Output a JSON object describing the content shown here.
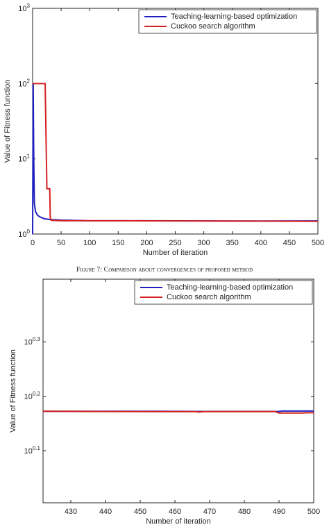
{
  "caption": "Figure 7: Comparison about convergences of proposed method",
  "chart_data": [
    {
      "type": "line",
      "log_y": true,
      "legend": "top-right",
      "xlabel": "Number of iteration",
      "ylabel": "Value of Fitness function",
      "xlim": [
        0,
        500
      ],
      "xticks": [
        0,
        50,
        100,
        150,
        200,
        250,
        300,
        350,
        400,
        450,
        500
      ],
      "ylim": [
        1,
        1000
      ],
      "yticks": [
        {
          "value": 1,
          "label": "10",
          "exponent": "0"
        },
        {
          "value": 10,
          "label": "10",
          "exponent": "1"
        },
        {
          "value": 100,
          "label": "10",
          "exponent": "2"
        },
        {
          "value": 1000,
          "label": "10",
          "exponent": "3"
        }
      ],
      "series": [
        {
          "name": "Teaching-learning-based optimization",
          "color": "#1f1fbf",
          "x": [
            0,
            1,
            2,
            3,
            5,
            8,
            12,
            20,
            30,
            50,
            100,
            200,
            330,
            400,
            490,
            500
          ],
          "values": [
            1,
            100,
            10,
            2.6,
            2.0,
            1.8,
            1.7,
            1.6,
            1.56,
            1.53,
            1.5,
            1.5,
            1.49,
            1.49,
            1.495,
            1.495
          ]
        },
        {
          "name": "Cuckoo search algorithm",
          "color": "#d42020",
          "x": [
            0,
            1,
            22,
            25,
            30,
            31,
            33,
            50,
            100,
            330,
            490,
            500
          ],
          "values": [
            100,
            100,
            100,
            4,
            4,
            1.6,
            1.52,
            1.5,
            1.5,
            1.49,
            1.476,
            1.478
          ]
        }
      ]
    },
    {
      "type": "line",
      "log_y": true,
      "legend": "top-right",
      "xlabel": "Number of iteration",
      "ylabel": "Value of Fitness function",
      "xlim": [
        422,
        500
      ],
      "xticks": [
        430,
        440,
        450,
        460,
        470,
        480,
        490,
        500
      ],
      "ylim": [
        1.01,
        2.6
      ],
      "yticks": [
        {
          "value": 1.259,
          "label": "10",
          "exponent": "0.1"
        },
        {
          "value": 1.585,
          "label": "10",
          "exponent": "0.2"
        },
        {
          "value": 1.995,
          "label": "10",
          "exponent": "0.3"
        }
      ],
      "series": [
        {
          "name": "Teaching-learning-based optimization",
          "color": "#1f1fbf",
          "x": [
            422,
            455,
            467,
            490,
            491,
            500
          ],
          "values": [
            1.487,
            1.487,
            1.486,
            1.486,
            1.489,
            1.489
          ]
        },
        {
          "name": "Cuckoo search algorithm",
          "color": "#d42020",
          "x": [
            422,
            455,
            466,
            467,
            468,
            489,
            490,
            497,
            498,
            500
          ],
          "values": [
            1.487,
            1.485,
            1.485,
            1.482,
            1.485,
            1.485,
            1.476,
            1.476,
            1.478,
            1.478
          ]
        }
      ]
    }
  ]
}
